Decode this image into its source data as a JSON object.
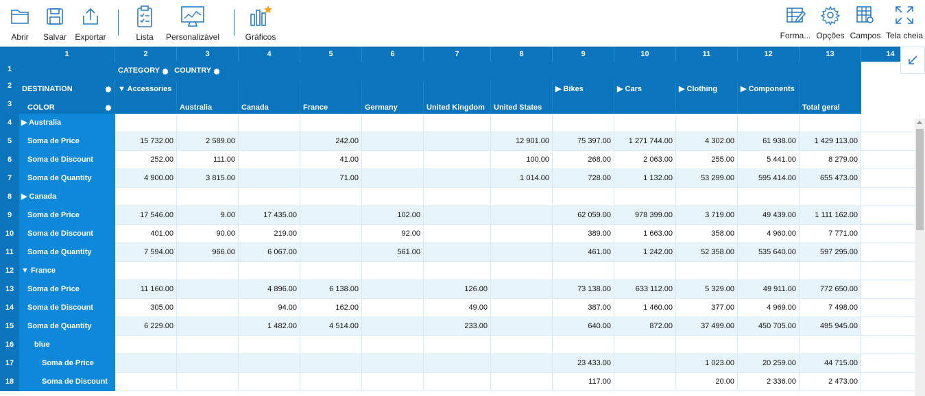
{
  "toolbar": {
    "left": [
      {
        "label": "Abrir",
        "icon": "folder-icon"
      },
      {
        "label": "Salvar",
        "icon": "save-icon"
      },
      {
        "label": "Exportar",
        "icon": "export-icon"
      },
      {
        "label": "Lista",
        "icon": "clipboard-icon"
      },
      {
        "label": "Personalizável",
        "icon": "monitor-icon"
      },
      {
        "label": "Gráficos",
        "icon": "chart-icon"
      }
    ],
    "right": [
      {
        "label": "Forma...",
        "icon": "format-icon"
      },
      {
        "label": "Opções",
        "icon": "gear-icon"
      },
      {
        "label": "Campos",
        "icon": "fields-icon"
      },
      {
        "label": "Tela cheia",
        "icon": "fullscreen-icon"
      }
    ]
  },
  "columns": [
    "1",
    "2",
    "3",
    "4",
    "5",
    "6",
    "7",
    "8",
    "9",
    "10",
    "11",
    "12",
    "13",
    "14"
  ],
  "header": {
    "category": "CATEGORY",
    "country": "COUNTRY",
    "destination": "DESTINATION",
    "color": "COLOR",
    "row2": [
      "▼ Accessories",
      "",
      "",
      "",
      "",
      "",
      "",
      "▶ Bikes",
      "▶ Cars",
      "▶ Clothing",
      "▶ Components",
      ""
    ],
    "row3": [
      "",
      "Australia",
      "Canada",
      "France",
      "Germany",
      "United Kingdom",
      "United States",
      "",
      "",
      "",
      "",
      "Total geral"
    ]
  },
  "rows": [
    {
      "n": "4",
      "label": "▶ Australia",
      "type": "group",
      "vals": [
        "",
        "",
        "",
        "",
        "",
        "",
        "",
        "",
        "",
        "",
        "",
        ""
      ]
    },
    {
      "n": "5",
      "label": "Soma de Price",
      "type": "measure",
      "vals": [
        "15 732.00",
        "2 589.00",
        "",
        "242.00",
        "",
        "",
        "12 901.00",
        "75 397.00",
        "1 271 744.00",
        "4 302.00",
        "61 938.00",
        "1 429 113.00"
      ]
    },
    {
      "n": "6",
      "label": "Soma de Discount",
      "type": "measure",
      "vals": [
        "252.00",
        "111.00",
        "",
        "41.00",
        "",
        "",
        "100.00",
        "268.00",
        "2 063.00",
        "255.00",
        "5 441.00",
        "8 279.00"
      ]
    },
    {
      "n": "7",
      "label": "Soma de Quantity",
      "type": "measure",
      "vals": [
        "4 900.00",
        "3 815.00",
        "",
        "71.00",
        "",
        "",
        "1 014.00",
        "728.00",
        "1 132.00",
        "53 299.00",
        "595 414.00",
        "655 473.00"
      ]
    },
    {
      "n": "8",
      "label": "▶ Canada",
      "type": "group",
      "vals": [
        "",
        "",
        "",
        "",
        "",
        "",
        "",
        "",
        "",
        "",
        "",
        ""
      ]
    },
    {
      "n": "9",
      "label": "Soma de Price",
      "type": "measure",
      "vals": [
        "17 546.00",
        "9.00",
        "17 435.00",
        "",
        "102.00",
        "",
        "",
        "62 059.00",
        "978 399.00",
        "3 719.00",
        "49 439.00",
        "1 111 162.00"
      ]
    },
    {
      "n": "10",
      "label": "Soma de Discount",
      "type": "measure",
      "vals": [
        "401.00",
        "90.00",
        "219.00",
        "",
        "92.00",
        "",
        "",
        "389.00",
        "1 663.00",
        "358.00",
        "4 960.00",
        "7 771.00"
      ]
    },
    {
      "n": "11",
      "label": "Soma de Quantity",
      "type": "measure",
      "vals": [
        "7 594.00",
        "966.00",
        "6 067.00",
        "",
        "561.00",
        "",
        "",
        "461.00",
        "1 242.00",
        "52 358.00",
        "535 640.00",
        "597 295.00"
      ]
    },
    {
      "n": "12",
      "label": "▼ France",
      "type": "group",
      "vals": [
        "",
        "",
        "",
        "",
        "",
        "",
        "",
        "",
        "",
        "",
        "",
        ""
      ]
    },
    {
      "n": "13",
      "label": "Soma de Price",
      "type": "measure",
      "vals": [
        "11 160.00",
        "",
        "4 896.00",
        "6 138.00",
        "",
        "126.00",
        "",
        "73 138.00",
        "633 112.00",
        "5 329.00",
        "49 911.00",
        "772 650.00"
      ]
    },
    {
      "n": "14",
      "label": "Soma de Discount",
      "type": "measure",
      "vals": [
        "305.00",
        "",
        "94.00",
        "162.00",
        "",
        "49.00",
        "",
        "387.00",
        "1 460.00",
        "377.00",
        "4 969.00",
        "7 498.00"
      ]
    },
    {
      "n": "15",
      "label": "Soma de Quantity",
      "type": "measure",
      "vals": [
        "6 229.00",
        "",
        "1 482.00",
        "4 514.00",
        "",
        "233.00",
        "",
        "640.00",
        "872.00",
        "37 499.00",
        "450 705.00",
        "495 945.00"
      ]
    },
    {
      "n": "16",
      "label": "blue",
      "type": "sub",
      "vals": [
        "",
        "",
        "",
        "",
        "",
        "",
        "",
        "",
        "",
        "",
        "",
        ""
      ]
    },
    {
      "n": "17",
      "label": "Soma de Price",
      "type": "submeasure",
      "vals": [
        "",
        "",
        "",
        "",
        "",
        "",
        "",
        "23 433.00",
        "",
        "1 023.00",
        "20 259.00",
        "44 715.00"
      ]
    },
    {
      "n": "18",
      "label": "Soma de Discount",
      "type": "submeasure",
      "vals": [
        "",
        "",
        "",
        "",
        "",
        "",
        "",
        "117.00",
        "",
        "20.00",
        "2 336.00",
        "2 473.00"
      ]
    }
  ]
}
